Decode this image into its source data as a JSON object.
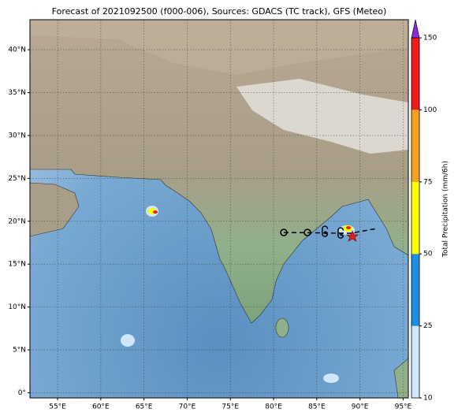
{
  "title": "Forecast of 2021092500 (f000-006), Sources: GDACS (TC track), GFS (Meteo)",
  "map": {
    "lonlim": [
      51.8,
      95.6
    ],
    "latlim": [
      -0.6,
      43.5
    ],
    "xticks": [
      {
        "value": 55,
        "label": "55°E"
      },
      {
        "value": 60,
        "label": "60°E"
      },
      {
        "value": 65,
        "label": "65°E"
      },
      {
        "value": 70,
        "label": "70°E"
      },
      {
        "value": 75,
        "label": "75°E"
      },
      {
        "value": 80,
        "label": "80°E"
      },
      {
        "value": 85,
        "label": "85°E"
      },
      {
        "value": 90,
        "label": "90°E"
      },
      {
        "value": 95,
        "label": "95°E"
      }
    ],
    "yticks": [
      {
        "value": 0,
        "label": "0°"
      },
      {
        "value": 5,
        "label": "5°N"
      },
      {
        "value": 10,
        "label": "10°N"
      },
      {
        "value": 15,
        "label": "15°N"
      },
      {
        "value": 20,
        "label": "20°N"
      },
      {
        "value": 25,
        "label": "25°N"
      },
      {
        "value": 30,
        "label": "30°N"
      },
      {
        "value": 35,
        "label": "35°N"
      },
      {
        "value": 40,
        "label": "40°N"
      }
    ],
    "grid": true
  },
  "colorbar": {
    "label": "Total Precipitation (mm/6h)",
    "levels": [
      10,
      25,
      50,
      75,
      100,
      150
    ],
    "colors": [
      "#cfe6fb",
      "#1e8fe0",
      "#ffff00",
      "#f7a21e",
      "#ee1c1c"
    ],
    "extend_color": "#8a2be2"
  }
}
